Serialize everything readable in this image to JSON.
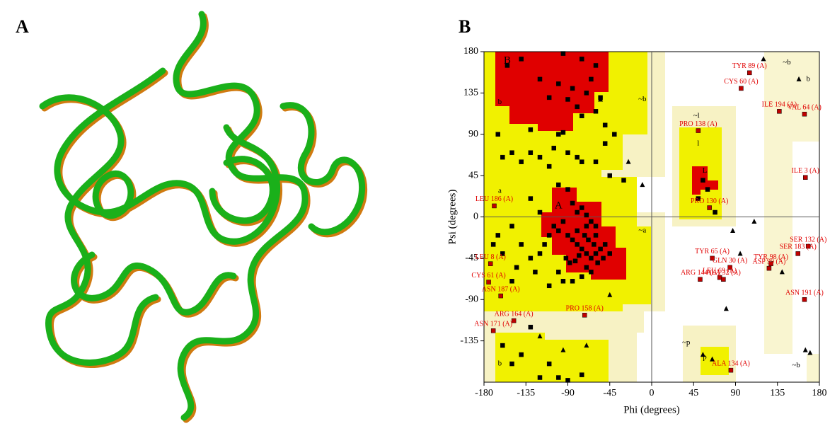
{
  "panel_labels": [
    "A",
    "B"
  ],
  "chart_data": {
    "type": "scatter",
    "xlabel": "Phi (degrees)",
    "ylabel": "Psi (degrees)",
    "xlim": [
      -180,
      180
    ],
    "ylim": [
      -180,
      180
    ],
    "xticks": [
      -180,
      -135,
      -90,
      -45,
      0,
      45,
      90,
      135,
      180
    ],
    "yticks": [
      -135,
      -90,
      -45,
      0,
      45,
      90,
      135,
      180
    ],
    "region_labels": [
      "B",
      "b",
      "a",
      "A",
      "~b",
      "~a",
      "~l",
      "l",
      "L",
      "~p",
      "p",
      "~b",
      "b",
      "b",
      "~b"
    ],
    "series": [
      {
        "marker": "square",
        "color": "#000000",
        "x": [
          -155,
          -140,
          -95,
          -75,
          -60,
          -120,
          -100,
          -85,
          -70,
          -65,
          -110,
          -90,
          -80,
          -75,
          -60,
          -50,
          -95,
          -100,
          -55,
          -40,
          -130,
          -165,
          -150,
          -140,
          -120,
          -110,
          -80,
          -75,
          -60,
          -50,
          -45,
          -30,
          -160,
          -130,
          -105,
          -90,
          -100,
          -90,
          -85,
          -80,
          -75,
          -70,
          -65,
          -60,
          -95,
          -100,
          -110,
          -105,
          -90,
          -85,
          -80,
          -75,
          -70,
          -65,
          -60,
          -55,
          -50,
          -62,
          -68,
          -72,
          -78,
          -82,
          -88,
          -92,
          -70,
          -65,
          -58,
          -52,
          -45,
          -60,
          -70,
          -80,
          -115,
          -120,
          -130,
          -140,
          -150,
          -125,
          -100,
          -110,
          -95,
          -85,
          -75,
          -120,
          -130,
          -145,
          -150,
          -160,
          -165,
          -170,
          -130,
          -160,
          -140,
          -110,
          -100,
          -90,
          -75,
          -120,
          -150,
          55,
          60,
          50,
          68
        ],
        "values": [
          165,
          172,
          178,
          172,
          165,
          150,
          145,
          140,
          135,
          150,
          130,
          128,
          120,
          110,
          115,
          100,
          92,
          90,
          130,
          90,
          95,
          90,
          70,
          60,
          65,
          55,
          65,
          60,
          60,
          80,
          45,
          40,
          65,
          70,
          75,
          70,
          35,
          30,
          15,
          5,
          10,
          2,
          -5,
          -10,
          -5,
          -15,
          -20,
          -10,
          -20,
          -25,
          -30,
          -35,
          -40,
          -45,
          -40,
          -35,
          -30,
          -30,
          -25,
          -20,
          -42,
          -48,
          -50,
          -45,
          -55,
          -60,
          -50,
          -45,
          -40,
          -20,
          -10,
          -15,
          -30,
          -40,
          -45,
          -30,
          -10,
          -60,
          -60,
          -75,
          -70,
          -70,
          -65,
          5,
          20,
          -55,
          -70,
          -40,
          -20,
          -30,
          -120,
          -140,
          -150,
          -160,
          -175,
          -178,
          -172,
          -175,
          -160,
          40,
          30,
          20,
          5
        ]
      },
      {
        "marker": "triangle",
        "color": "#000000",
        "x": [
          120,
          110,
          87,
          158,
          -55,
          -120,
          -95,
          -45,
          -10,
          -70,
          80,
          165,
          170,
          55,
          65,
          140,
          95,
          -25
        ],
        "values": [
          172,
          -5,
          -15,
          150,
          128,
          -130,
          -145,
          -85,
          35,
          -140,
          -100,
          -145,
          -148,
          -150,
          -155,
          -60,
          -40,
          60
        ]
      },
      {
        "marker": "square",
        "color": "#c00000",
        "x": [
          105,
          96,
          137,
          164,
          50,
          165,
          62,
          -169,
          168,
          157,
          65,
          84,
          128,
          126,
          73,
          77,
          52,
          164,
          -173,
          -175,
          -162,
          -148,
          -72,
          -170,
          85
        ],
        "values": [
          157,
          140,
          115,
          112,
          94,
          43,
          10,
          12,
          -32,
          -40,
          -45,
          -55,
          -51,
          -56,
          -66,
          -68,
          -68,
          -90,
          -51,
          -71,
          -86,
          -113,
          -107,
          -124,
          -167
        ],
        "labels": [
          "TYR 89 (A)",
          "CYS 60 (A)",
          "ILE 194 (A)",
          "VAL 64 (A)",
          "PRO 138 (A)",
          "ILE 3 (A)",
          "PRO 130 (A)",
          "LEU 186 (A)",
          "SER 132 (A)",
          "SER 183 (A)",
          "TYR 65 (A)",
          "GLN 30 (A)",
          "TYR 98 (A)",
          "ASP 99 (A)",
          "LEU 69 (A)",
          "ALA 32 (A)",
          "ARG 144 (A)",
          "ASN 191 (A)",
          "LEU 8 (A)",
          "CYS 61 (A)",
          "ASN 187 (A)",
          "ARG 164 (A)",
          "PRO 158 (A)",
          "ASN 171 (A)",
          "ALA 134 (A)"
        ]
      }
    ]
  }
}
